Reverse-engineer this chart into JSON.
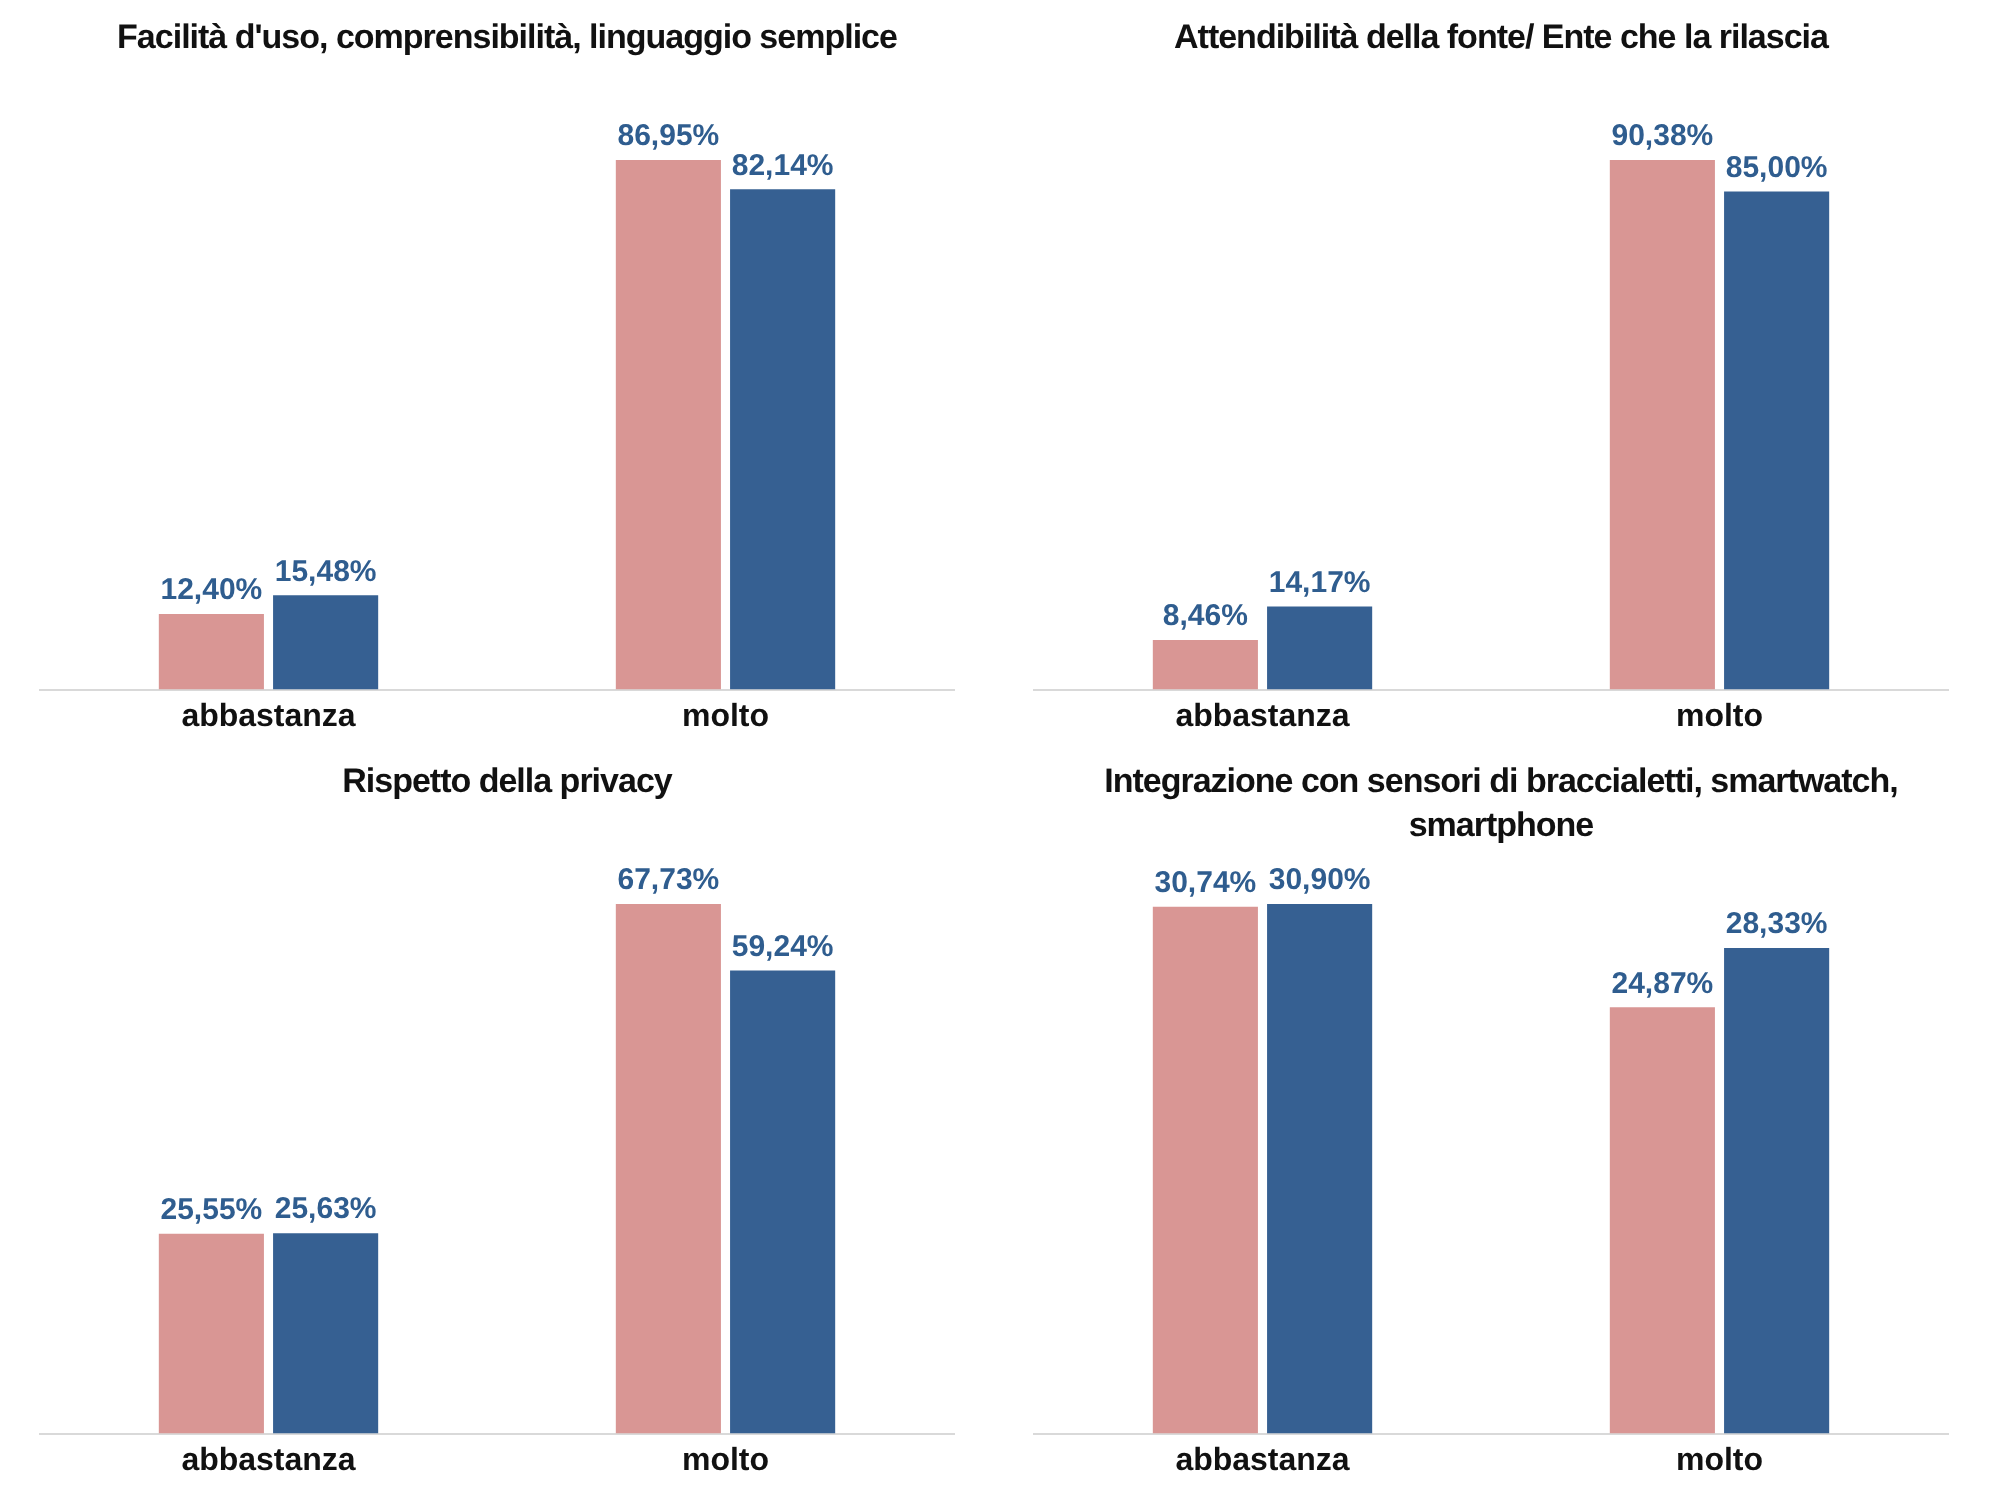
{
  "chart_data": [
    {
      "type": "bar",
      "title": "Facilità d'uso, comprensibilità, linguaggio semplice",
      "categories": [
        "abbastanza",
        "molto"
      ],
      "series": [
        {
          "color": "#d99694",
          "values": [
            12.4,
            86.95
          ],
          "value_labels": [
            "12,40%",
            "86,95%"
          ]
        },
        {
          "color": "#366092",
          "values": [
            15.48,
            82.14
          ],
          "value_labels": [
            "15,48%",
            "82,14%"
          ]
        }
      ],
      "legend": false,
      "grid": false
    },
    {
      "type": "bar",
      "title": "Attendibilità della fonte/  Ente che la rilascia",
      "categories": [
        "abbastanza",
        "molto"
      ],
      "series": [
        {
          "color": "#d99694",
          "values": [
            8.46,
            90.38
          ],
          "value_labels": [
            "8,46%",
            "90,38%"
          ]
        },
        {
          "color": "#366092",
          "values": [
            14.17,
            85.0
          ],
          "value_labels": [
            "14,17%",
            "85,00%"
          ]
        }
      ],
      "legend": false,
      "grid": false
    },
    {
      "type": "bar",
      "title": "Rispetto della privacy",
      "categories": [
        "abbastanza",
        "molto"
      ],
      "series": [
        {
          "color": "#d99694",
          "values": [
            25.55,
            67.73
          ],
          "value_labels": [
            "25,55%",
            "67,73%"
          ]
        },
        {
          "color": "#366092",
          "values": [
            25.63,
            59.24
          ],
          "value_labels": [
            "25,63%",
            "59,24%"
          ]
        }
      ],
      "legend": false,
      "grid": false
    },
    {
      "type": "bar",
      "title": "Integrazione con sensori di braccialetti, smartwatch, smartphone",
      "categories": [
        "abbastanza",
        "molto"
      ],
      "series": [
        {
          "color": "#d99694",
          "values": [
            30.74,
            24.87
          ],
          "value_labels": [
            "30,74%",
            "24,87%"
          ]
        },
        {
          "color": "#366092",
          "values": [
            30.9,
            28.33
          ],
          "value_labels": [
            "30,90%",
            "28,33%"
          ]
        }
      ],
      "legend": false,
      "grid": false
    }
  ]
}
